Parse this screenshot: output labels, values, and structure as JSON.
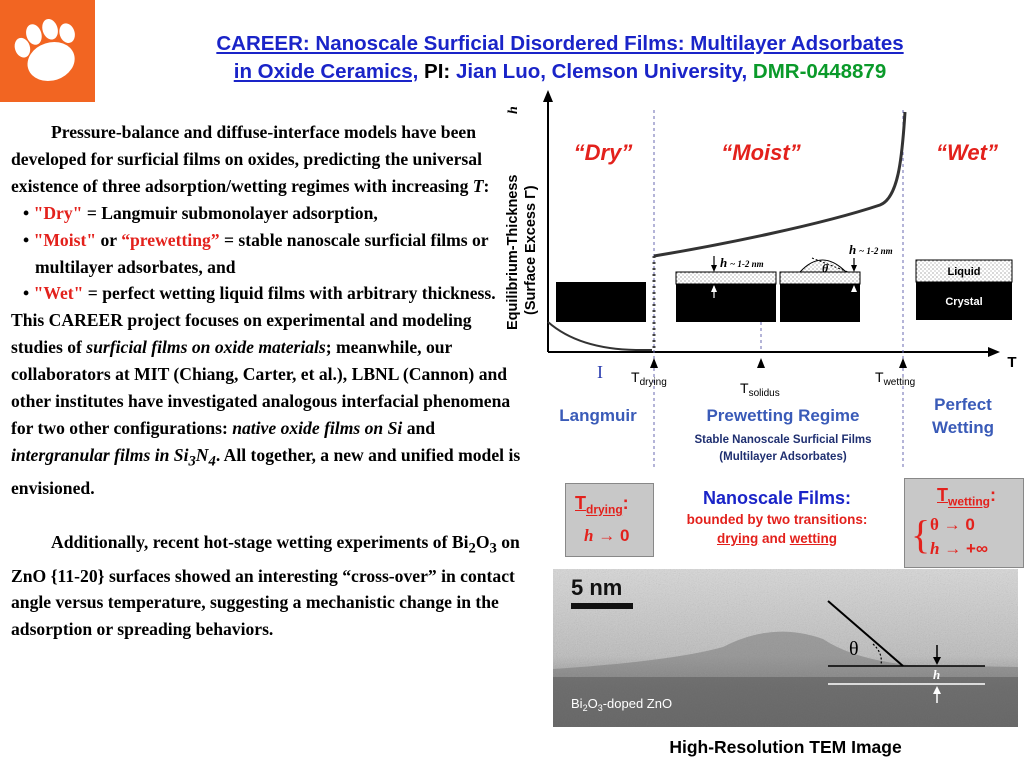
{
  "header": {
    "title_line1": "CAREER: Nanoscale Surficial Disordered Films: Multilayer Adsorbates",
    "title_line2": "in Oxide Ceramics,",
    "pi_label": "PI:",
    "pi_name": "Jian Luo, Clemson University,",
    "award": "DMR-0448879",
    "colors": {
      "title": "#1a24c8",
      "award": "#0a9a2a",
      "logo_bg": "#f26522"
    }
  },
  "body": {
    "intro": [
      "Pressure-balance and diffuse-interface models have been developed for surficial films on oxides, predicting the universal existence of three adsorption/wetting regimes with increasing ",
      "T",
      ":"
    ],
    "bullets": [
      {
        "key": "\"Dry\"",
        "text": " = Langmuir submonolayer adsorption,"
      },
      {
        "key": "\"Moist\"",
        "mid": " or ",
        "key2": "“prewetting”",
        "text": " = stable nanoscale surficial films or multilayer adsorbates, and"
      },
      {
        "key": "\"Wet\"",
        "text": " = perfect wetting liquid films with arbitrary thickness."
      }
    ],
    "career": {
      "a": "This CAREER project focuses on experimental and modeling studies of ",
      "b": "surficial films on oxide materials",
      "c": "; meanwhile, our collaborators at MIT (Chiang, Carter, et al.), LBNL (Cannon) and other institutes have investigated analogous interfacial phenomena for two other configurations: ",
      "d": "native oxide films on Si",
      "e": " and ",
      "f": "intergranular films in Si",
      "g": "3",
      "h": "N",
      "i": "4",
      "j": ". All together, a new and unified model is envisioned."
    },
    "hotstage": {
      "a": "Additionally, recent hot-stage wetting experiments of Bi",
      "b": "2",
      "c": "O",
      "d": "3",
      "e": " on ZnO {11-20} surfaces showed an interesting “cross-over” in contact angle versus temperature, suggesting a mechanistic change in the adsorption or spreading behaviors."
    }
  },
  "diagram": {
    "ylabel1": "Equilibrium-Thickness",
    "ylabel1_var": "h",
    "ylabel2": "(Surface Excess Γ)",
    "xlabel": "T",
    "regime_dry": "“Dry”",
    "regime_moist": "“Moist”",
    "regime_wet": "“Wet”",
    "roman_one": "I",
    "t_drying": "T",
    "t_drying_sub": "drying",
    "t_solidus": "T",
    "t_solidus_sub": "solidus",
    "t_wetting": "T",
    "t_wetting_sub": "wetting",
    "h1": "h",
    "h1_note": " ~ 1-2 nm",
    "h2": "h",
    "h2_note": " ~ 1-2 nm",
    "theta": "θ",
    "legend_liquid": "Liquid",
    "legend_crystal": "Crystal",
    "label_langmuir": "Langmuir",
    "label_prewetting": "Prewetting Regime",
    "label_stable": "Stable Nanoscale Surficial Films",
    "label_multilayer": "(Multilayer Adsorbates)",
    "label_perfect": "Perfect",
    "label_wetting": "Wetting"
  },
  "boxes": {
    "drying_T": "T",
    "drying_sub": "drying",
    "drying_colon": ":",
    "drying_h": "h",
    "drying_arrow": "→",
    "drying_val": "0",
    "wetting_T": "T",
    "wetting_sub": "wetting",
    "wetting_colon": ":",
    "brace": "{",
    "wet_theta": "θ",
    "wet_arrow1": "→",
    "wet_val1": "0",
    "wet_h": "h",
    "wet_arrow2": "→",
    "wet_val2": "+∞"
  },
  "nano": {
    "title": "Nanoscale Films:",
    "line2": "bounded by two transitions:",
    "drying": "drying",
    "and": " and ",
    "wetting": "wetting"
  },
  "tem": {
    "scale": "5 nm",
    "theta": "θ",
    "h": "h",
    "sample_a": "Bi",
    "sample_b": "2",
    "sample_c": "O",
    "sample_d": "3",
    "sample_e": "-doped ZnO",
    "caption": "High-Resolution TEM Image"
  }
}
